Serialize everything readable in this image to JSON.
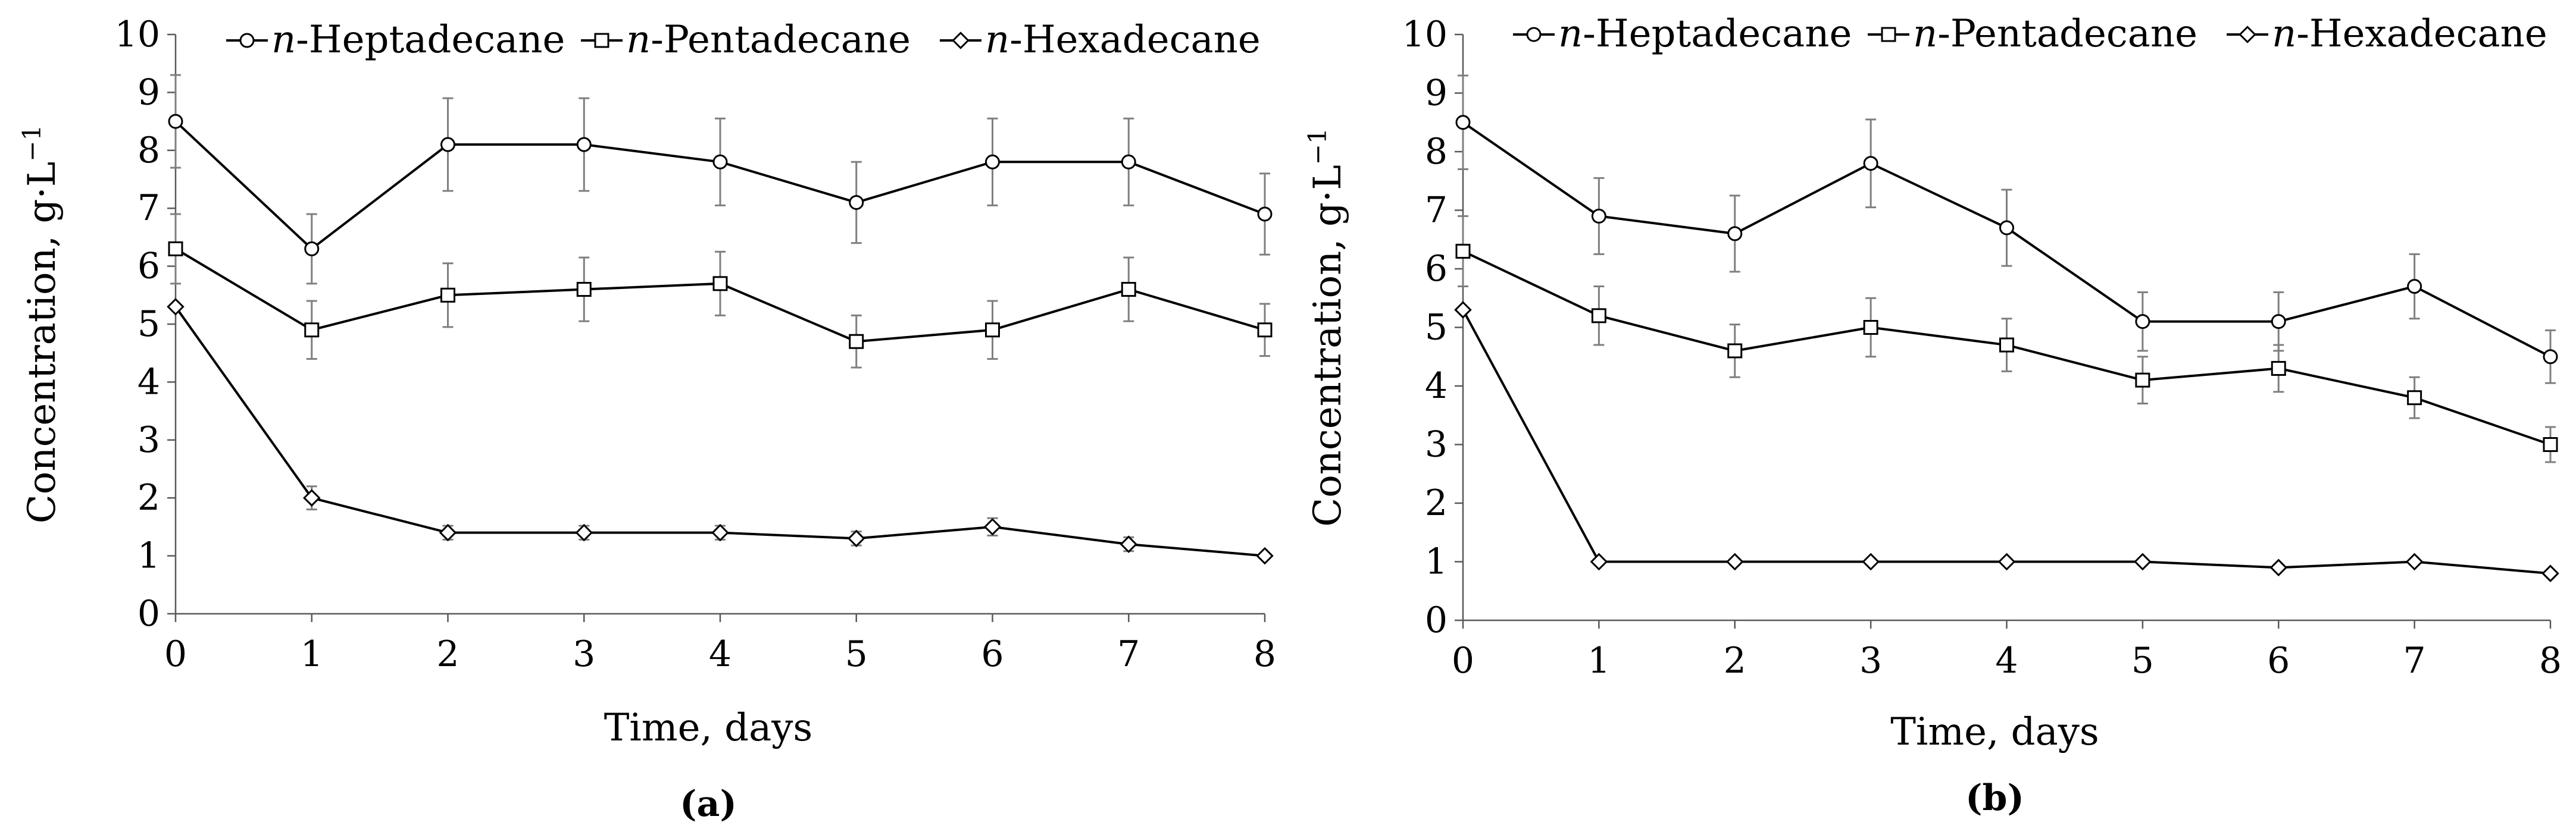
{
  "chart_data": [
    {
      "type": "line",
      "panel_label": "(a)",
      "xlabel": "Time, days",
      "ylabel": "Concentration, g·L",
      "ylabel_superscript": "−1",
      "x": [
        0,
        1,
        2,
        3,
        4,
        5,
        6,
        7,
        8
      ],
      "xlim": [
        0,
        8
      ],
      "ylim": [
        0,
        10
      ],
      "x_ticks": [
        "0",
        "1",
        "2",
        "3",
        "4",
        "5",
        "6",
        "7",
        "8"
      ],
      "y_ticks": [
        "0",
        "1",
        "2",
        "3",
        "4",
        "5",
        "6",
        "7",
        "8",
        "9",
        "10"
      ],
      "grid": false,
      "legend_position": "top",
      "series": [
        {
          "name_prefix": "n",
          "name_suffix": "-Heptadecane",
          "marker": "circle",
          "values": [
            8.5,
            6.3,
            8.1,
            8.1,
            7.8,
            7.1,
            7.8,
            7.8,
            6.9
          ],
          "errors": [
            0.8,
            0.6,
            0.8,
            0.8,
            0.75,
            0.7,
            0.75,
            0.75,
            0.7
          ]
        },
        {
          "name_prefix": "n",
          "name_suffix": "-Pentadecane",
          "marker": "square",
          "values": [
            6.3,
            4.9,
            5.5,
            5.6,
            5.7,
            4.7,
            4.9,
            5.6,
            4.9
          ],
          "errors": [
            0.6,
            0.5,
            0.55,
            0.55,
            0.55,
            0.45,
            0.5,
            0.55,
            0.45
          ]
        },
        {
          "name_prefix": "n",
          "name_suffix": "-Hexadecane",
          "marker": "diamond",
          "values": [
            5.3,
            2.0,
            1.4,
            1.4,
            1.4,
            1.3,
            1.5,
            1.2,
            1.0
          ],
          "errors": [
            0.0,
            0.2,
            0.12,
            0.12,
            0.12,
            0.12,
            0.15,
            0.12,
            0.05
          ]
        }
      ]
    },
    {
      "type": "line",
      "panel_label": "(b)",
      "xlabel": "Time, days",
      "ylabel": "Concentration, g·L",
      "ylabel_superscript": "−1",
      "x": [
        0,
        1,
        2,
        3,
        4,
        5,
        6,
        7,
        8
      ],
      "xlim": [
        0,
        8
      ],
      "ylim": [
        0,
        10
      ],
      "x_ticks": [
        "0",
        "1",
        "2",
        "3",
        "4",
        "5",
        "6",
        "7",
        "8"
      ],
      "y_ticks": [
        "0",
        "1",
        "2",
        "3",
        "4",
        "5",
        "6",
        "7",
        "8",
        "9",
        "10"
      ],
      "grid": false,
      "legend_position": "top",
      "series": [
        {
          "name_prefix": "n",
          "name_suffix": "-Heptadecane",
          "marker": "circle",
          "values": [
            8.5,
            6.9,
            6.6,
            7.8,
            6.7,
            5.1,
            5.1,
            5.7,
            4.5
          ],
          "errors": [
            0.8,
            0.65,
            0.65,
            0.75,
            0.65,
            0.5,
            0.5,
            0.55,
            0.45
          ]
        },
        {
          "name_prefix": "n",
          "name_suffix": "-Pentadecane",
          "marker": "square",
          "values": [
            6.3,
            5.2,
            4.6,
            5.0,
            4.7,
            4.1,
            4.3,
            3.8,
            3.0
          ],
          "errors": [
            0.6,
            0.5,
            0.45,
            0.5,
            0.45,
            0.4,
            0.4,
            0.35,
            0.3
          ]
        },
        {
          "name_prefix": "n",
          "name_suffix": "-Hexadecane",
          "marker": "diamond",
          "values": [
            5.3,
            1.0,
            1.0,
            1.0,
            1.0,
            1.0,
            0.9,
            1.0,
            0.8
          ],
          "errors": [
            0.0,
            0.05,
            0.05,
            0.05,
            0.05,
            0.05,
            0.05,
            0.05,
            0.04
          ]
        }
      ]
    }
  ]
}
